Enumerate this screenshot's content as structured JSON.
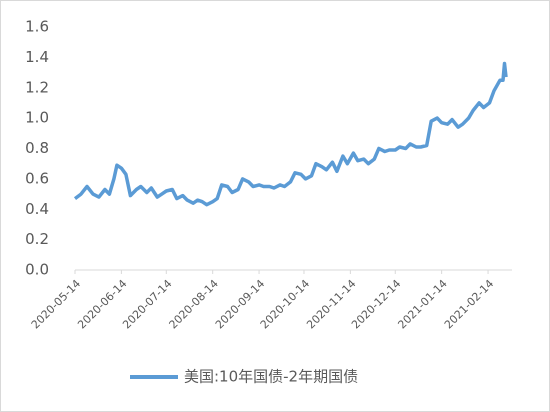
{
  "chart_data": {
    "type": "line",
    "x": [
      "2020-05-14",
      "2020-05-18",
      "2020-05-22",
      "2020-05-26",
      "2020-05-30",
      "2020-06-03",
      "2020-06-06",
      "2020-06-09",
      "2020-06-11",
      "2020-06-14",
      "2020-06-17",
      "2020-06-20",
      "2020-06-24",
      "2020-06-27",
      "2020-07-01",
      "2020-07-04",
      "2020-07-08",
      "2020-07-11",
      "2020-07-14",
      "2020-07-18",
      "2020-07-21",
      "2020-07-25",
      "2020-07-28",
      "2020-08-01",
      "2020-08-04",
      "2020-08-07",
      "2020-08-10",
      "2020-08-14",
      "2020-08-17",
      "2020-08-20",
      "2020-08-24",
      "2020-08-27",
      "2020-08-31",
      "2020-09-03",
      "2020-09-07",
      "2020-09-10",
      "2020-09-14",
      "2020-09-17",
      "2020-09-21",
      "2020-09-24",
      "2020-09-28",
      "2020-10-01",
      "2020-10-05",
      "2020-10-08",
      "2020-10-12",
      "2020-10-15",
      "2020-10-19",
      "2020-10-22",
      "2020-10-26",
      "2020-10-29",
      "2020-11-02",
      "2020-11-05",
      "2020-11-09",
      "2020-11-12",
      "2020-11-16",
      "2020-11-19",
      "2020-11-23",
      "2020-11-26",
      "2020-11-30",
      "2020-12-03",
      "2020-12-07",
      "2020-12-10",
      "2020-12-14",
      "2020-12-17",
      "2020-12-21",
      "2020-12-24",
      "2020-12-28",
      "2020-12-31",
      "2021-01-04",
      "2021-01-07",
      "2021-01-11",
      "2021-01-14",
      "2021-01-18",
      "2021-01-21",
      "2021-01-25",
      "2021-01-28",
      "2021-02-01",
      "2021-02-04",
      "2021-02-08",
      "2021-02-11",
      "2021-02-15",
      "2021-02-18",
      "2021-02-22",
      "2021-02-24",
      "2021-02-25",
      "2021-02-26"
    ],
    "series": [
      {
        "name": "美国:10年国债-2年期国债",
        "color": "#5b9bd5",
        "values": [
          0.47,
          0.5,
          0.55,
          0.5,
          0.48,
          0.53,
          0.5,
          0.6,
          0.69,
          0.67,
          0.63,
          0.49,
          0.53,
          0.55,
          0.51,
          0.54,
          0.48,
          0.5,
          0.52,
          0.53,
          0.47,
          0.49,
          0.46,
          0.44,
          0.46,
          0.45,
          0.43,
          0.45,
          0.47,
          0.56,
          0.55,
          0.51,
          0.53,
          0.6,
          0.58,
          0.55,
          0.56,
          0.55,
          0.55,
          0.54,
          0.56,
          0.55,
          0.58,
          0.64,
          0.63,
          0.6,
          0.62,
          0.7,
          0.68,
          0.66,
          0.71,
          0.65,
          0.75,
          0.7,
          0.77,
          0.72,
          0.73,
          0.7,
          0.73,
          0.8,
          0.78,
          0.79,
          0.79,
          0.81,
          0.8,
          0.83,
          0.81,
          0.81,
          0.82,
          0.98,
          1.0,
          0.97,
          0.96,
          0.99,
          0.94,
          0.96,
          1.0,
          1.05,
          1.1,
          1.07,
          1.1,
          1.18,
          1.25,
          1.25,
          1.36,
          1.27
        ]
      }
    ],
    "xlim": [
      "2020-05-14",
      "2021-02-26"
    ],
    "xticks": [
      "2020-05-14",
      "2020-06-14",
      "2020-07-14",
      "2020-08-14",
      "2020-09-14",
      "2020-10-14",
      "2020-11-14",
      "2020-12-14",
      "2021-01-14",
      "2021-02-14"
    ],
    "ylim": [
      0,
      1.6
    ],
    "yticks": [
      {
        "value": 0,
        "label": "0.0"
      },
      0.2,
      0.4,
      0.6,
      0.8,
      {
        "value": 1,
        "label": "1.0"
      },
      1.2,
      1.4,
      1.6
    ],
    "legend": "bottom"
  }
}
